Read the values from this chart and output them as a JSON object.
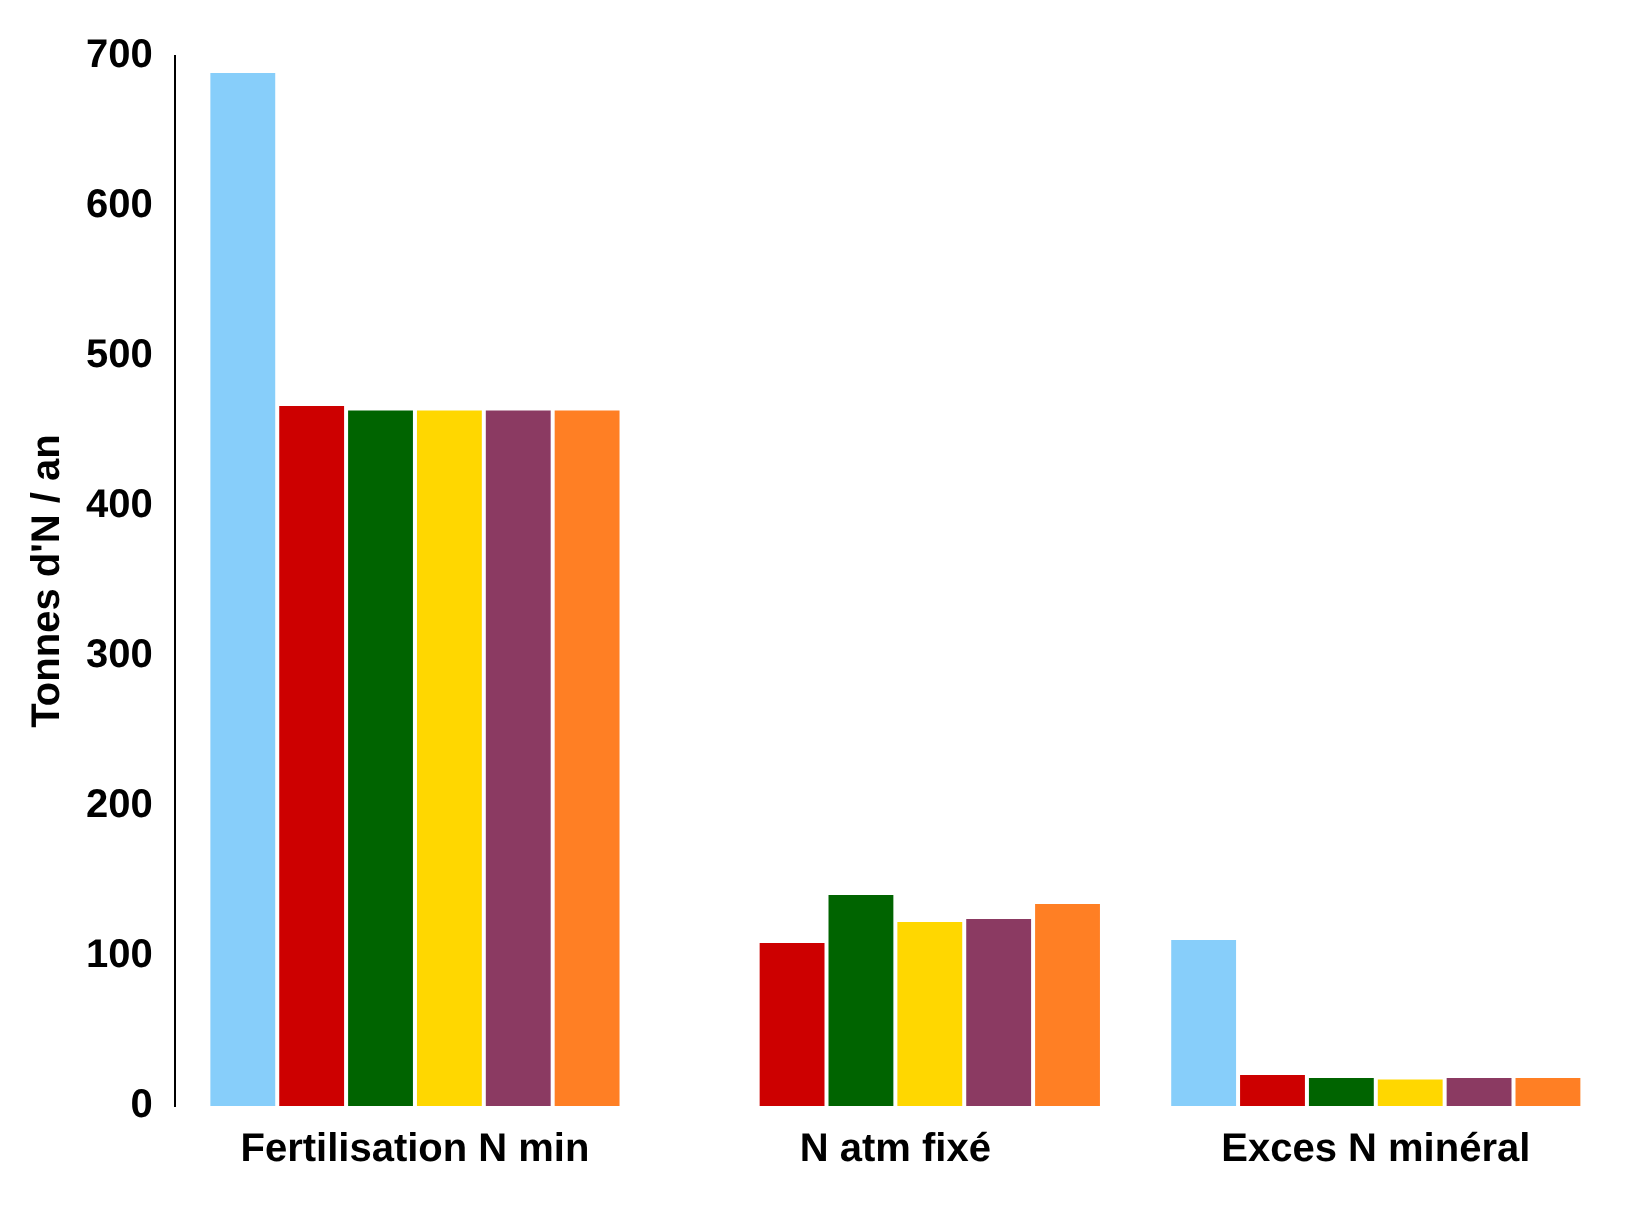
{
  "chart_data": {
    "type": "bar",
    "ylabel": "Tonnes d'N / an",
    "categories": [
      "Fertilisation N min",
      "N atm fixé",
      "Exces N minéral"
    ],
    "series": [
      {
        "color": "#87cefa",
        "values": [
          690,
          null,
          112
        ]
      },
      {
        "color": "#cd0000",
        "values": [
          468,
          110,
          22
        ]
      },
      {
        "color": "#006400",
        "values": [
          465,
          142,
          20
        ]
      },
      {
        "color": "#ffd700",
        "values": [
          465,
          124,
          19
        ]
      },
      {
        "color": "#8b3a62",
        "values": [
          465,
          126,
          20
        ]
      },
      {
        "color": "#ff7f24",
        "values": [
          465,
          136,
          20
        ]
      }
    ],
    "ylim": [
      0,
      700
    ],
    "yticks": [
      0,
      100,
      200,
      300,
      400,
      500,
      600,
      700
    ],
    "grid": false,
    "legend": false
  }
}
